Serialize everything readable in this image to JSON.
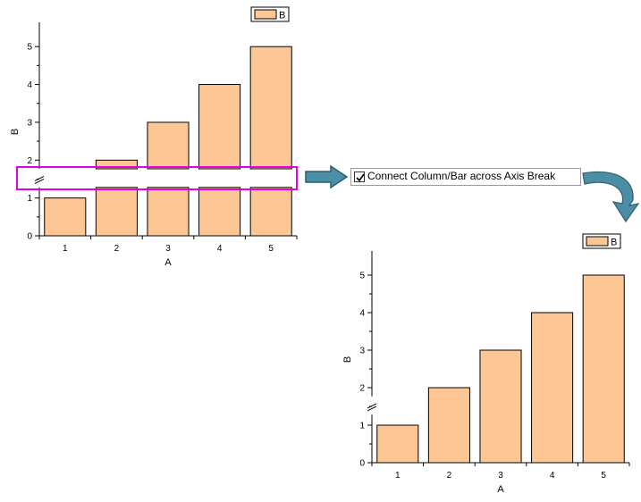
{
  "colors": {
    "bar_fill": "#FCC795",
    "bar_stroke": "#000000",
    "highlight": "#E600E6",
    "arrow_fill": "#4A8FA6",
    "arrow_stroke": "#2E5E70"
  },
  "checkbox": {
    "label": "Connect Column/Bar across Axis Break",
    "checked": true
  },
  "chart_data": [
    {
      "type": "bar",
      "name": "before",
      "categories": [
        "1",
        "2",
        "3",
        "4",
        "5"
      ],
      "values": [
        1,
        2,
        3,
        4,
        5
      ],
      "legend": "B",
      "xlabel": "A",
      "ylabel": "B",
      "yticks": [
        "0",
        "1",
        "2",
        "3",
        "4",
        "5"
      ],
      "ylim": [
        0,
        5.5
      ],
      "axis_break": [
        1.35,
        1.7
      ],
      "connect_across_break": false,
      "legend_position": "top-right"
    },
    {
      "type": "bar",
      "name": "after",
      "categories": [
        "1",
        "2",
        "3",
        "4",
        "5"
      ],
      "values": [
        1,
        2,
        3,
        4,
        5
      ],
      "legend": "B",
      "xlabel": "A",
      "ylabel": "B",
      "yticks": [
        "0",
        "1",
        "2",
        "3",
        "4",
        "5"
      ],
      "ylim": [
        0,
        5.5
      ],
      "axis_break": [
        1.35,
        1.7
      ],
      "connect_across_break": true,
      "legend_position": "top-right"
    }
  ]
}
